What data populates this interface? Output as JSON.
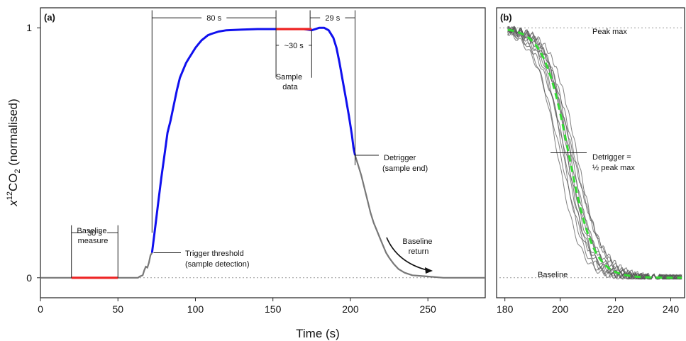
{
  "chart_data": [
    {
      "panel": "(a)",
      "type": "line",
      "xlabel": "Time (s)",
      "ylabel_main": "x",
      "ylabel_sup": "12",
      "ylabel_chem": "CO",
      "ylabel_sub": "2",
      "ylabel_rest": " (normalised)",
      "xlim": [
        0,
        287
      ],
      "ylim": [
        -0.08,
        1.08
      ],
      "xticks": [
        0,
        50,
        100,
        150,
        200,
        250
      ],
      "yticks": [
        0,
        1
      ],
      "colors": {
        "baseline_trace": "#777777",
        "sample_trace": "#1010ee",
        "window": "#ee2222",
        "dotted": "#999999"
      },
      "series": [
        {
          "segment": "pre-trigger",
          "color": "#777777",
          "x": [
            0,
            20,
            50,
            63,
            64,
            66,
            67,
            68,
            69,
            70,
            71,
            72
          ],
          "y": [
            0,
            0,
            0,
            0,
            0.005,
            0.01,
            0.03,
            0.045,
            0.04,
            0.06,
            0.09,
            0.1
          ]
        },
        {
          "segment": "sample",
          "color": "#1010ee",
          "x": [
            72,
            74,
            76,
            78,
            80,
            82,
            84,
            86,
            88,
            90,
            92,
            94,
            96,
            98,
            100,
            102,
            104,
            106,
            108,
            110,
            115,
            120,
            130,
            140,
            150,
            160,
            170,
            175,
            180,
            183,
            186,
            189,
            191,
            193,
            195,
            197,
            199,
            201,
            202,
            203
          ],
          "y": [
            0.1,
            0.2,
            0.3,
            0.4,
            0.49,
            0.58,
            0.63,
            0.69,
            0.75,
            0.8,
            0.83,
            0.86,
            0.88,
            0.9,
            0.92,
            0.935,
            0.95,
            0.96,
            0.97,
            0.975,
            0.985,
            0.99,
            0.993,
            0.995,
            0.995,
            0.995,
            0.995,
            0.99,
            1.0,
            1.0,
            0.99,
            0.96,
            0.92,
            0.86,
            0.79,
            0.72,
            0.65,
            0.57,
            0.52,
            0.49
          ]
        },
        {
          "segment": "post-detrigger",
          "color": "#777777",
          "x": [
            203,
            205,
            207,
            209,
            211,
            213,
            215,
            217,
            219,
            221,
            223,
            225,
            228,
            231,
            235,
            240,
            250,
            260,
            270,
            287
          ],
          "y": [
            0.49,
            0.45,
            0.41,
            0.36,
            0.31,
            0.26,
            0.22,
            0.19,
            0.16,
            0.13,
            0.1,
            0.08,
            0.055,
            0.035,
            0.02,
            0.01,
            0.005,
            0.0,
            0.0,
            0.0
          ]
        }
      ],
      "windows": [
        {
          "label": "Baseline measure",
          "x": [
            20,
            50
          ],
          "y": 0
        },
        {
          "label": "Sample data",
          "x": [
            152,
            175
          ],
          "y": 0.995
        }
      ],
      "intervals": [
        {
          "label": "30 s",
          "x": [
            20,
            50
          ],
          "y": 0.18
        },
        {
          "label": "80 s",
          "x": [
            72,
            152
          ],
          "y": 1.04
        },
        {
          "label": "~30 s",
          "x": [
            152,
            175
          ],
          "y": 0.93
        },
        {
          "label": "29 s",
          "x": [
            174,
            203
          ],
          "y": 1.04
        }
      ],
      "annotations": [
        {
          "key": "baseline_measure",
          "lines": [
            "Baseline",
            "measure"
          ]
        },
        {
          "key": "trigger",
          "lines": [
            "Trigger threshold",
            "(sample detection)"
          ]
        },
        {
          "key": "detrigger",
          "lines": [
            "Detrigger",
            "(sample end)"
          ]
        },
        {
          "key": "baseline_return",
          "lines": [
            "Baseline",
            "return"
          ]
        },
        {
          "key": "sample_data",
          "lines": [
            "Sample",
            "data"
          ]
        }
      ]
    },
    {
      "panel": "(b)",
      "type": "line",
      "xlim": [
        177,
        245
      ],
      "ylim": [
        -0.08,
        1.08
      ],
      "xticks": [
        180,
        200,
        220,
        240
      ],
      "reference_lines": [
        {
          "label": "Peak max",
          "y": 1
        },
        {
          "label": "Baseline",
          "y": 0
        }
      ],
      "detrigger_label": [
        "Detrigger =",
        "½ peak max"
      ],
      "detrigger_level": 0.5,
      "fit_curve": {
        "color": "#33dd33",
        "style": "dashed",
        "x0": 203,
        "k": 0.22
      },
      "traces": {
        "color": "#555555",
        "count": 12,
        "midpoints": [
          199,
          200,
          201,
          201.5,
          202,
          203,
          203.5,
          204,
          205,
          206,
          202.5,
          204.5
        ],
        "k": [
          0.24,
          0.2,
          0.26,
          0.22,
          0.19,
          0.25,
          0.21,
          0.23,
          0.2,
          0.22,
          0.27,
          0.18
        ]
      }
    }
  ]
}
